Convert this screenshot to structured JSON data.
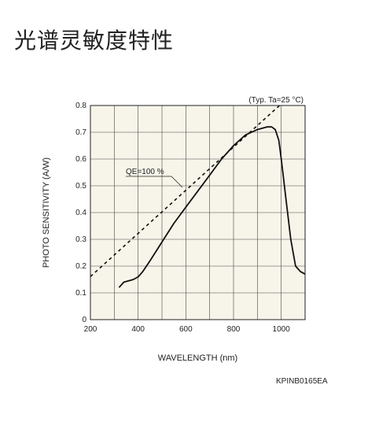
{
  "page": {
    "title": "光谱灵敏度特性",
    "code": "KPINB0165EA"
  },
  "chart_data": {
    "type": "line",
    "title": "",
    "xlabel": "WAVELENGTH (nm)",
    "ylabel": "PHOTO SENSITIVITY (A/W)",
    "xlim": [
      200,
      1100
    ],
    "ylim": [
      0,
      0.8
    ],
    "xticks": [
      200,
      400,
      600,
      800,
      1000
    ],
    "yticks": [
      0,
      0.1,
      0.2,
      0.3,
      0.4,
      0.5,
      0.6,
      0.7,
      0.8
    ],
    "grid": true,
    "annotations": [
      "(Typ. Ta=25 °C)",
      "QE=100 %"
    ],
    "series": [
      {
        "name": "",
        "style": "solid",
        "x": [
          320,
          340,
          360,
          380,
          400,
          420,
          450,
          500,
          550,
          600,
          650,
          700,
          750,
          800,
          850,
          900,
          940,
          960,
          975,
          990,
          1000,
          1020,
          1040,
          1060,
          1080,
          1100
        ],
        "y": [
          0.12,
          0.14,
          0.145,
          0.15,
          0.16,
          0.18,
          0.22,
          0.29,
          0.36,
          0.42,
          0.48,
          0.54,
          0.6,
          0.65,
          0.69,
          0.71,
          0.72,
          0.72,
          0.71,
          0.67,
          0.6,
          0.45,
          0.3,
          0.2,
          0.18,
          0.17
        ]
      },
      {
        "name": "QE=100 %",
        "style": "dashed",
        "x": [
          200,
          1000
        ],
        "y": [
          0.161,
          0.806
        ]
      }
    ]
  }
}
